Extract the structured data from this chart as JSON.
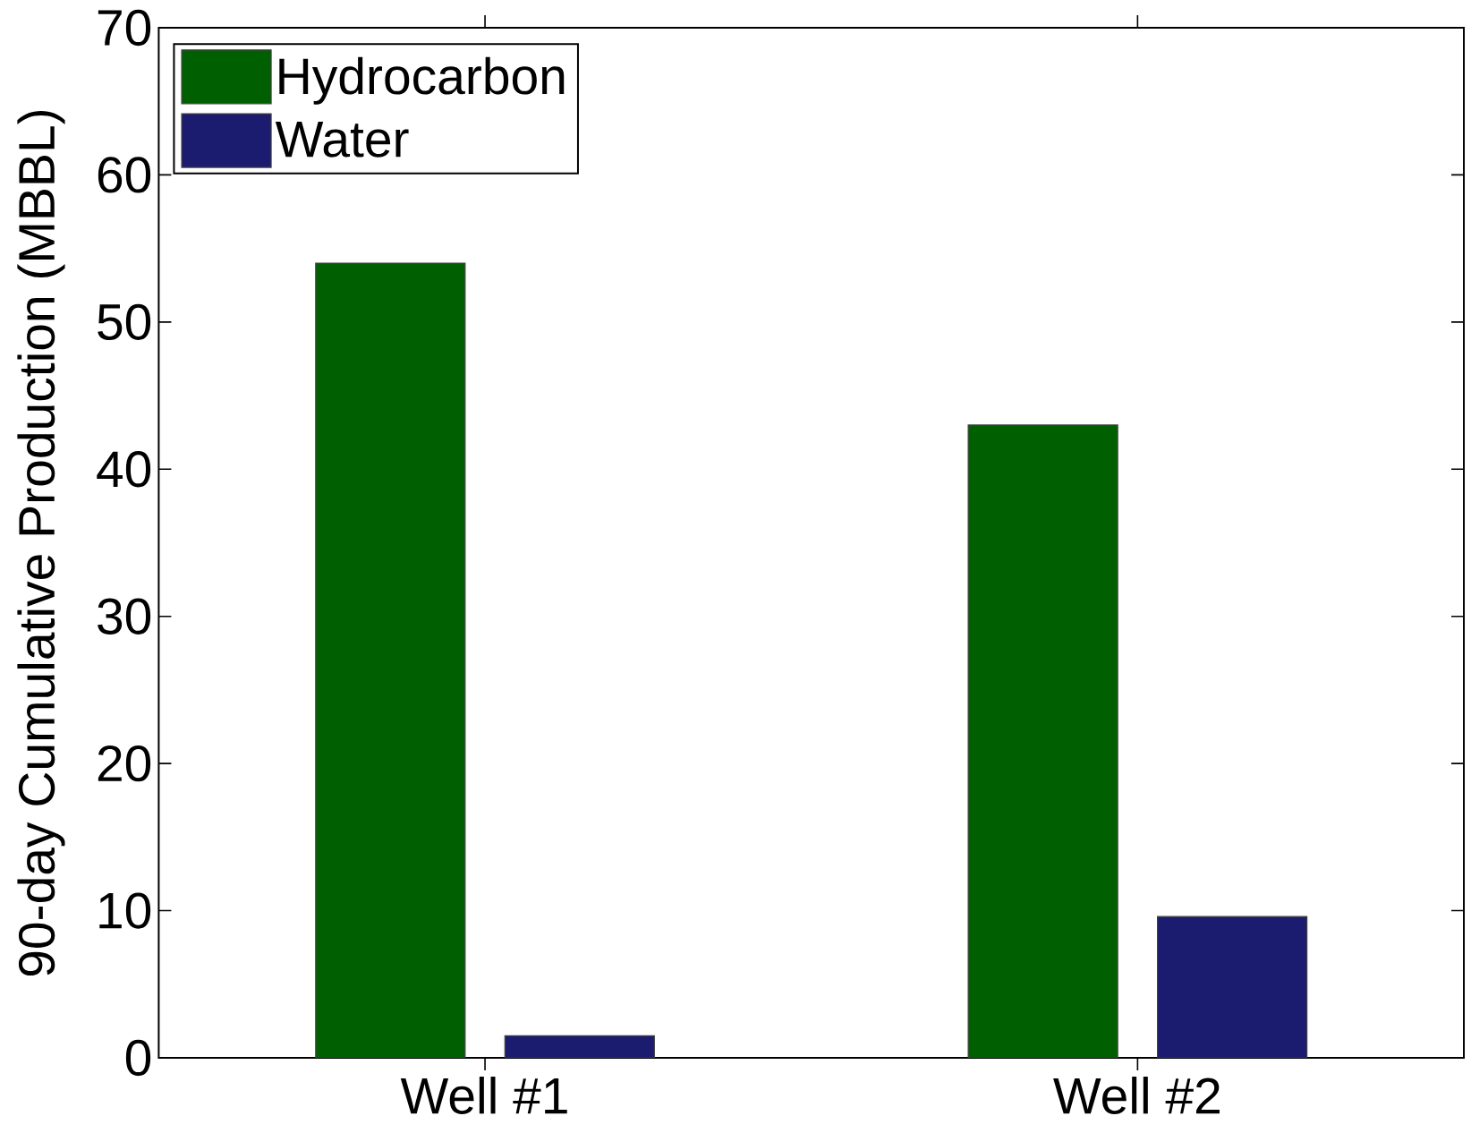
{
  "chart_data": {
    "type": "bar",
    "ylabel": "90-day Cumulative Production (MBBL)",
    "categories": [
      "Well #1",
      "Well #2"
    ],
    "series": [
      {
        "name": "Hydrocarbon",
        "color": "#005f00",
        "values": [
          54,
          43
        ]
      },
      {
        "name": "Water",
        "color": "#1b1b6f",
        "values": [
          1.5,
          9.6
        ]
      }
    ],
    "ylim": [
      0,
      70
    ],
    "yticks": [
      0,
      10,
      20,
      30,
      40,
      50,
      60,
      70
    ],
    "legend": "top left"
  }
}
